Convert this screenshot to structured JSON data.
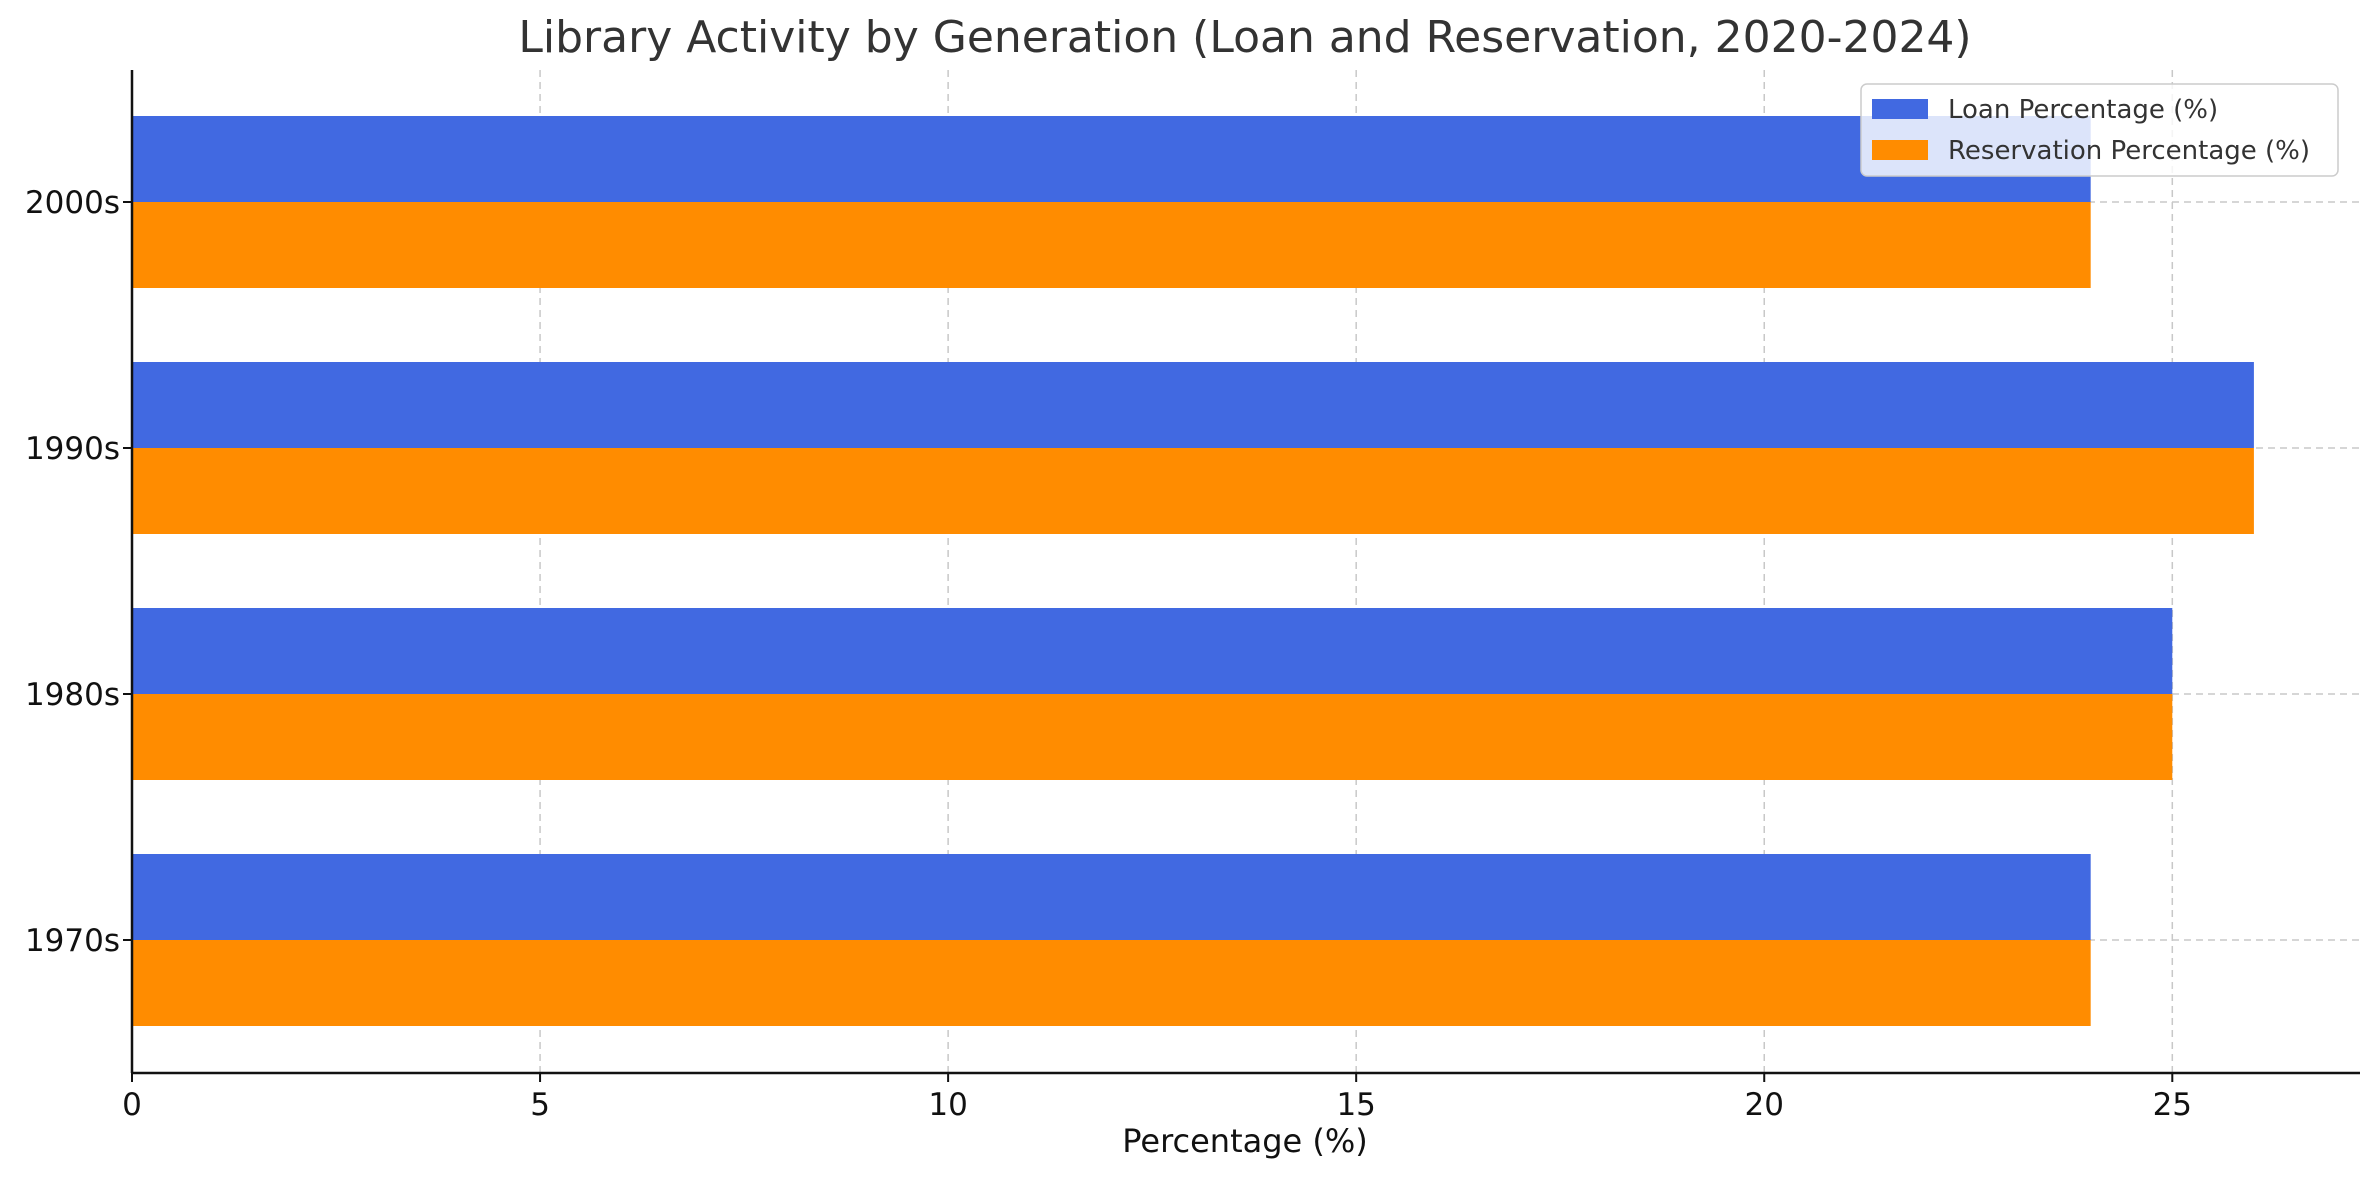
{
  "chart_data": {
    "type": "bar",
    "orientation": "horizontal",
    "title": "Library Activity by Generation (Loan and Reservation, 2020-2024)",
    "xlabel": "Percentage (%)",
    "ylabel": "",
    "categories": [
      "1970s",
      "1980s",
      "1990s",
      "2000s"
    ],
    "series": [
      {
        "name": "Loan Percentage (%)",
        "values": [
          24,
          25,
          26,
          24
        ],
        "color": "#4169E1"
      },
      {
        "name": "Reservation Percentage (%)",
        "values": [
          24,
          25,
          26,
          24
        ],
        "color": "#FF8C00"
      }
    ],
    "xlim": [
      0,
      27.3
    ],
    "xticks": [
      0,
      5,
      10,
      15,
      20,
      25
    ],
    "grid": true,
    "legend_position": "top-right"
  }
}
